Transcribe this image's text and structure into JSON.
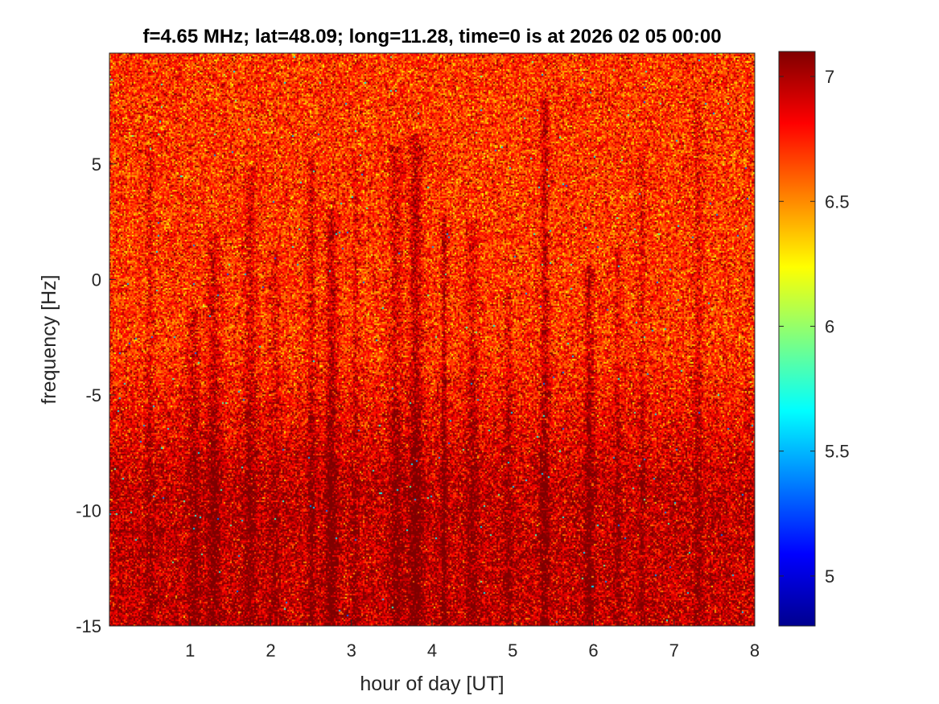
{
  "chart_data": {
    "type": "heatmap",
    "title": "f=4.65 MHz;  lat=48.09; long=11.28, time=0 is at 2026 02 05 00:00",
    "xlabel": "hour of day [UT]",
    "ylabel": "frequency [Hz]",
    "xlim": [
      0,
      8
    ],
    "ylim": [
      -15,
      9.8
    ],
    "x_ticks": [
      1,
      2,
      3,
      4,
      5,
      6,
      7,
      8
    ],
    "x_tick_labels": [
      "1",
      "2",
      "3",
      "4",
      "5",
      "6",
      "7",
      "8"
    ],
    "y_ticks": [
      -15,
      -10,
      -5,
      0,
      5
    ],
    "y_tick_labels": [
      "-15",
      "-10",
      "-5",
      "0",
      "5"
    ],
    "colorbar": {
      "colormap": "jet",
      "clim": [
        4.8,
        7.1
      ],
      "ticks": [
        5,
        5.5,
        6,
        6.5,
        7
      ],
      "tick_labels": [
        "5",
        "5.5",
        "6",
        "6.5",
        "7"
      ]
    },
    "value_summary": {
      "typical_range": [
        6.4,
        7.1
      ],
      "upper_region_mean": 6.7,
      "lower_region_mean": 6.95,
      "isolated_minimum": 5.3
    },
    "dark_streak_hours": [
      0.5,
      1.05,
      1.3,
      1.75,
      2.05,
      2.5,
      2.75,
      3.05,
      3.55,
      3.8,
      4.15,
      4.5,
      4.95,
      5.4,
      5.95,
      6.3,
      6.6,
      7.3
    ]
  }
}
